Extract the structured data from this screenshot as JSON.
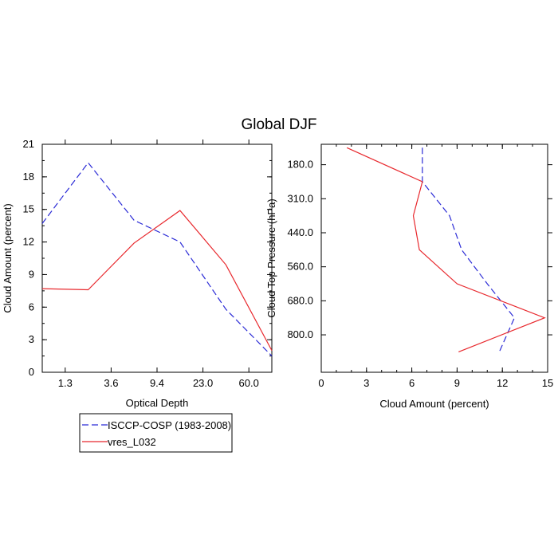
{
  "title": "Global DJF",
  "chart_data": [
    {
      "type": "line",
      "xlabel": "Optical Depth",
      "ylabel": "Cloud Amount (percent)",
      "x_tick_labels": [
        "1.3",
        "3.6",
        "9.4",
        "23.0",
        "60.0"
      ],
      "y_ticks": [
        0,
        3,
        6,
        9,
        12,
        15,
        18,
        21
      ],
      "ylim": [
        0,
        21
      ],
      "x_positions": [
        0,
        1,
        2,
        3,
        4,
        5
      ],
      "series": [
        {
          "name": "ISCCP-COSP (1983-2008)",
          "color": "#2b2bd6",
          "style": "dashed",
          "values": [
            13.7,
            19.3,
            14.0,
            12.0,
            5.8,
            1.5
          ]
        },
        {
          "name": "vres_L032",
          "color": "#e8282d",
          "style": "solid",
          "values": [
            7.7,
            7.6,
            11.9,
            14.9,
            9.9,
            2.0
          ]
        }
      ]
    },
    {
      "type": "line",
      "xlabel": "Cloud Amount (percent)",
      "ylabel": "Cloud Top Pressure (hPa)",
      "x_ticks": [
        0,
        3,
        6,
        9,
        12,
        15
      ],
      "xlim": [
        0,
        15
      ],
      "y_tick_labels": [
        "180.0",
        "310.0",
        "440.0",
        "560.0",
        "680.0",
        "800.0"
      ],
      "y_positions": [
        0,
        1,
        2,
        3,
        4,
        5,
        6
      ],
      "series": [
        {
          "name": "ISCCP-COSP (1983-2008)",
          "color": "#2b2bd6",
          "style": "dashed",
          "values": [
            6.7,
            6.7,
            8.5,
            9.3,
            11.0,
            12.8,
            11.8
          ]
        },
        {
          "name": "vres_L032",
          "color": "#e8282d",
          "style": "solid",
          "values": [
            1.7,
            6.7,
            6.1,
            6.5,
            9.0,
            14.8,
            9.1
          ]
        }
      ]
    }
  ],
  "legend": [
    {
      "label": "ISCCP-COSP (1983-2008)",
      "color": "#2b2bd6",
      "style": "dashed"
    },
    {
      "label": "vres_L032",
      "color": "#e8282d",
      "style": "solid"
    }
  ]
}
